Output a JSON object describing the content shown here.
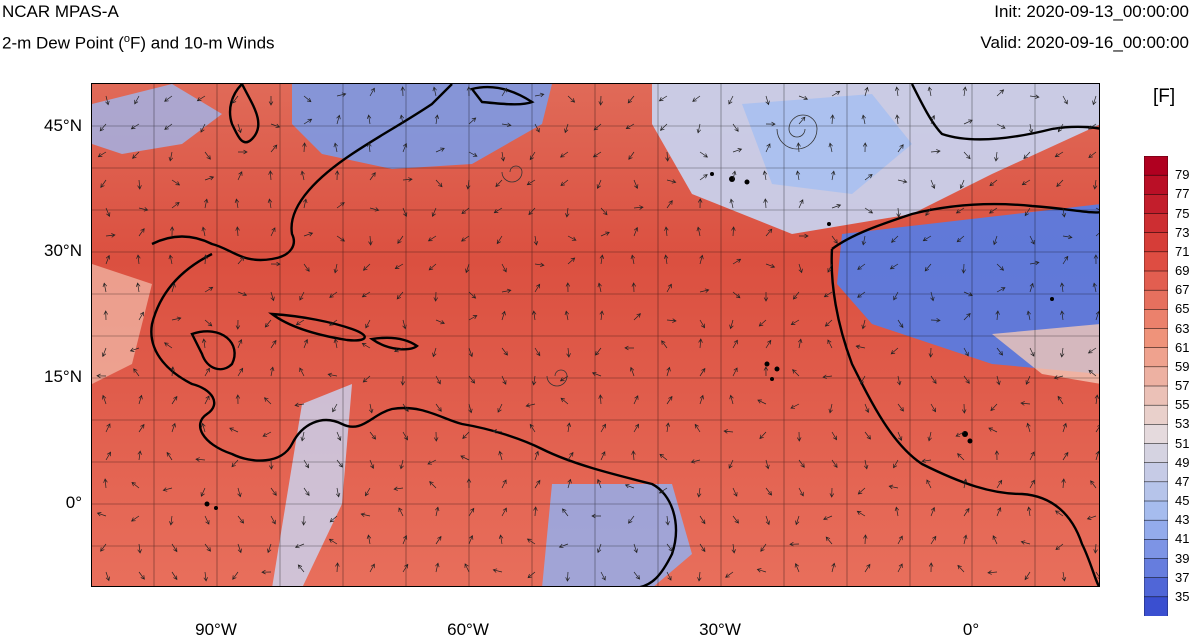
{
  "header": {
    "title": "NCAR MPAS-A",
    "subtitle_pre": "2-m Dew Point (",
    "subtitle_deg": "o",
    "subtitle_post": "F) and 10-m Winds",
    "init": "Init: 2020-09-13_00:00:00",
    "valid": "Valid: 2020-09-16_00:00:00"
  },
  "axes": {
    "lat_labels": [
      "45°N",
      "30°N",
      "15°N",
      "0°"
    ],
    "lon_labels": [
      "90°W",
      "60°W",
      "30°W",
      "0°"
    ]
  },
  "colorbar": {
    "units": "[F]",
    "labels": [
      "79",
      "77",
      "75",
      "73",
      "71",
      "69",
      "67",
      "65",
      "63",
      "61",
      "59",
      "57",
      "55",
      "53",
      "51",
      "49",
      "47",
      "45",
      "43",
      "41",
      "39",
      "37",
      "35"
    ],
    "top_color": "#b00020",
    "bottom_color": "#3a4fd0"
  },
  "colors": {
    "warm": "#d9483b",
    "mid": "#f2c7b5",
    "cool": "#6e8fe6",
    "coast": "#000000"
  }
}
